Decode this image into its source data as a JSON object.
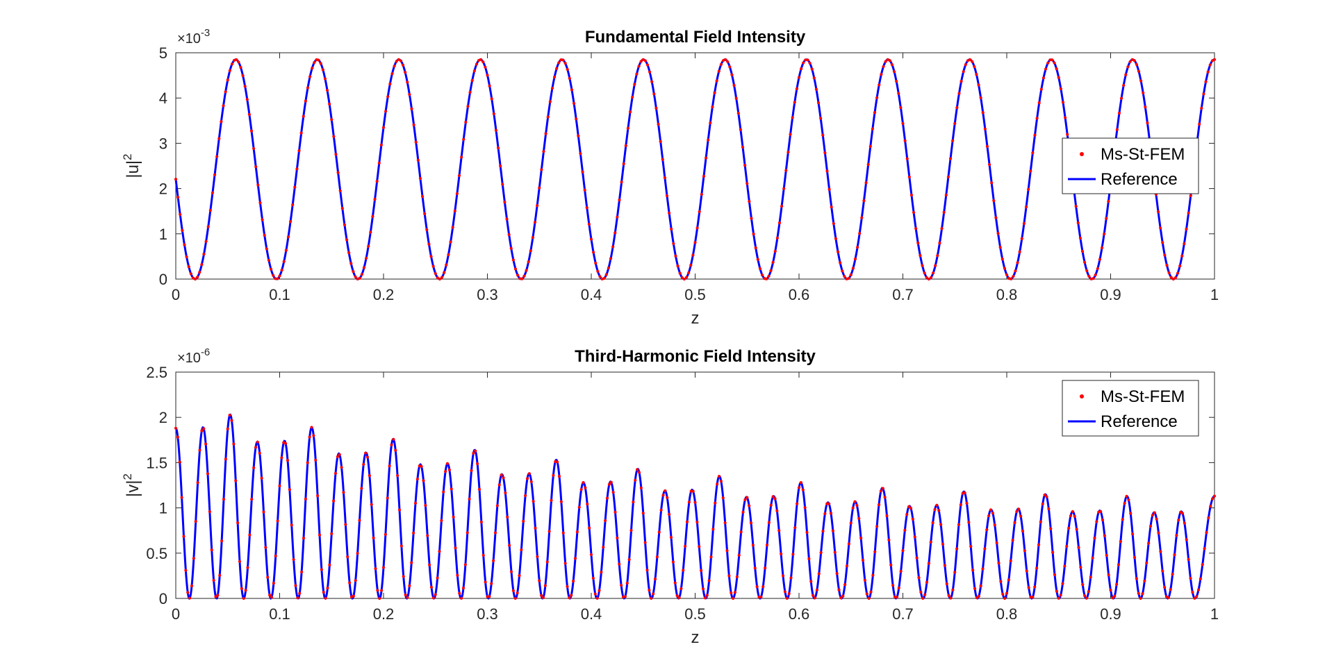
{
  "chart_data": [
    {
      "type": "line",
      "title": "Fundamental Field Intensity",
      "xlabel": "z",
      "ylabel_base": "|u|",
      "ylabel_sup": "2",
      "exponent_base": "×10",
      "exponent_sup": "-3",
      "xlim": [
        0,
        1
      ],
      "ylim": [
        0,
        5
      ],
      "xticks": [
        "0",
        "0.1",
        "0.2",
        "0.3",
        "0.4",
        "0.5",
        "0.6",
        "0.7",
        "0.8",
        "0.9",
        "1"
      ],
      "yticks": [
        "0",
        "1",
        "2",
        "3",
        "4",
        "5"
      ],
      "legend": {
        "placement": "right",
        "entries": [
          {
            "name": "Ms-St-FEM",
            "marker": "dot",
            "color": "#ff0000"
          },
          {
            "name": "Reference",
            "marker": "line",
            "color": "#0000ff"
          }
        ]
      },
      "grid": false,
      "model": {
        "kind": "sin2",
        "amplitude": 4.85,
        "period": 0.0785,
        "minima_at": 0.0185,
        "y_at_zero": 2.38
      }
    },
    {
      "type": "line",
      "title": "Third-Harmonic Field Intensity",
      "xlabel": "z",
      "ylabel_base": "|v|",
      "ylabel_sup": "2",
      "exponent_base": "×10",
      "exponent_sup": "-6",
      "xlim": [
        0,
        1
      ],
      "ylim": [
        0,
        2.5
      ],
      "xticks": [
        "0",
        "0.1",
        "0.2",
        "0.3",
        "0.4",
        "0.5",
        "0.6",
        "0.7",
        "0.8",
        "0.9",
        "1"
      ],
      "yticks": [
        "0",
        "0.5",
        "1",
        "1.5",
        "2",
        "2.5"
      ],
      "legend": {
        "placement": "top-right",
        "entries": [
          {
            "name": "Ms-St-FEM",
            "marker": "dot",
            "color": "#ff0000"
          },
          {
            "name": "Reference",
            "marker": "line",
            "color": "#0000ff"
          }
        ]
      },
      "grid": false,
      "model": {
        "kind": "piecewise-peaks",
        "minima": [
          0.0131,
          0.0393,
          0.0654,
          0.0916,
          0.1178,
          0.1439,
          0.1701,
          0.1962,
          0.2224,
          0.2486,
          0.2747,
          0.3009,
          0.3271,
          0.3532,
          0.3794,
          0.4055,
          0.4317,
          0.4579,
          0.484,
          0.5102,
          0.5364,
          0.5625,
          0.5887,
          0.6148,
          0.641,
          0.6672,
          0.6933,
          0.7195,
          0.7457,
          0.7718,
          0.798,
          0.8241,
          0.8503,
          0.8765,
          0.9026,
          0.9288,
          0.955,
          0.9811
        ],
        "peaks": [
          {
            "x": 0.0,
            "y": 1.88
          },
          {
            "x": 0.026,
            "y": 1.89
          },
          {
            "x": 0.052,
            "y": 2.03
          },
          {
            "x": 0.079,
            "y": 1.73
          },
          {
            "x": 0.105,
            "y": 1.74
          },
          {
            "x": 0.131,
            "y": 1.89
          },
          {
            "x": 0.157,
            "y": 1.6
          },
          {
            "x": 0.183,
            "y": 1.61
          },
          {
            "x": 0.209,
            "y": 1.76
          },
          {
            "x": 0.236,
            "y": 1.48
          },
          {
            "x": 0.262,
            "y": 1.49
          },
          {
            "x": 0.288,
            "y": 1.64
          },
          {
            "x": 0.314,
            "y": 1.37
          },
          {
            "x": 0.34,
            "y": 1.38
          },
          {
            "x": 0.366,
            "y": 1.53
          },
          {
            "x": 0.393,
            "y": 1.28
          },
          {
            "x": 0.419,
            "y": 1.29
          },
          {
            "x": 0.445,
            "y": 1.43
          },
          {
            "x": 0.471,
            "y": 1.19
          },
          {
            "x": 0.497,
            "y": 1.2
          },
          {
            "x": 0.523,
            "y": 1.35
          },
          {
            "x": 0.55,
            "y": 1.12
          },
          {
            "x": 0.576,
            "y": 1.13
          },
          {
            "x": 0.602,
            "y": 1.28
          },
          {
            "x": 0.628,
            "y": 1.06
          },
          {
            "x": 0.654,
            "y": 1.07
          },
          {
            "x": 0.681,
            "y": 1.22
          },
          {
            "x": 0.707,
            "y": 1.02
          },
          {
            "x": 0.733,
            "y": 1.03
          },
          {
            "x": 0.759,
            "y": 1.18
          },
          {
            "x": 0.785,
            "y": 0.98
          },
          {
            "x": 0.811,
            "y": 0.99
          },
          {
            "x": 0.838,
            "y": 1.15
          },
          {
            "x": 0.864,
            "y": 0.96
          },
          {
            "x": 0.89,
            "y": 0.97
          },
          {
            "x": 0.916,
            "y": 1.13
          },
          {
            "x": 0.942,
            "y": 0.95
          },
          {
            "x": 0.968,
            "y": 0.96
          },
          {
            "x": 1.0,
            "y": 1.13
          }
        ]
      }
    }
  ]
}
